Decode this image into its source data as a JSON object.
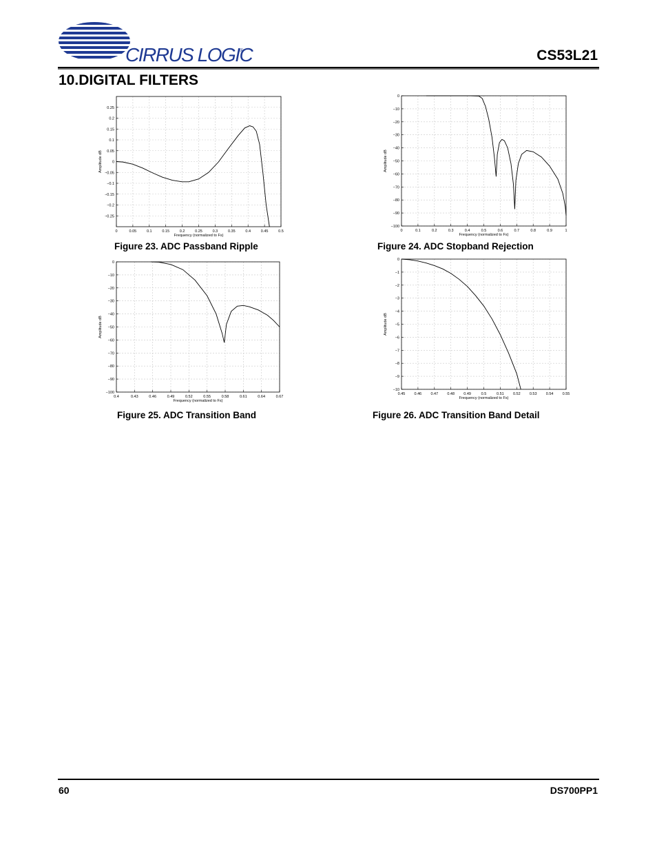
{
  "header": {
    "logo_text": "CIRRUS LOGIC",
    "logo_mark": "®",
    "doc_id": "CS53L21",
    "section_title": "10.DIGITAL FILTERS"
  },
  "colors": {
    "logo_blue": "#1f3a93",
    "curve": "#000000",
    "grid": "#c8c8c8"
  },
  "chart_data": [
    {
      "id": "fig23",
      "type": "line",
      "caption": "Figure 23.  ADC Passband Ripple",
      "xlabel": "Frequency (normalized to Fs)",
      "ylabel": "Amplitude dB",
      "xlim": [
        0,
        0.5
      ],
      "ylim": [
        -0.3,
        0.3
      ],
      "xticks": [
        0,
        0.05,
        0.1,
        0.15,
        0.2,
        0.25,
        0.3,
        0.35,
        0.4,
        0.45,
        0.5
      ],
      "xticklabels": [
        "0",
        "0.05",
        "0.1",
        "0.15",
        "0.2",
        "0.25",
        "0.3",
        "0.35",
        "0.4",
        "0.45",
        "0.5"
      ],
      "yticks": [
        -0.25,
        -0.2,
        -0.15,
        -0.1,
        -0.05,
        0,
        0.05,
        0.1,
        0.15,
        0.2,
        0.25
      ],
      "yticklabels": [
        "−0.25",
        "−0.2",
        "−0.15",
        "−0.1",
        "−0.05",
        "0",
        "0.05",
        "0.1",
        "0.15",
        "0.2",
        "0.25"
      ],
      "grid": true,
      "series": [
        {
          "values": [
            [
              0,
              0.0
            ],
            [
              0.02,
              -0.002
            ],
            [
              0.05,
              -0.012
            ],
            [
              0.08,
              -0.03
            ],
            [
              0.11,
              -0.052
            ],
            [
              0.14,
              -0.072
            ],
            [
              0.17,
              -0.086
            ],
            [
              0.2,
              -0.093
            ],
            [
              0.22,
              -0.093
            ],
            [
              0.25,
              -0.08
            ],
            [
              0.28,
              -0.05
            ],
            [
              0.31,
              -0.002
            ],
            [
              0.34,
              0.06
            ],
            [
              0.37,
              0.12
            ],
            [
              0.39,
              0.155
            ],
            [
              0.405,
              0.165
            ],
            [
              0.415,
              0.16
            ],
            [
              0.425,
              0.14
            ],
            [
              0.435,
              0.08
            ],
            [
              0.445,
              -0.05
            ],
            [
              0.455,
              -0.2
            ],
            [
              0.465,
              -0.3
            ]
          ]
        }
      ]
    },
    {
      "id": "fig24",
      "type": "line",
      "caption": "Figure 24.  ADC Stopband Rejection",
      "xlabel": "Frequency (normalized to Fs)",
      "ylabel": "Amplitude dB",
      "xlim": [
        0,
        1
      ],
      "ylim": [
        -100,
        0
      ],
      "xticks": [
        0,
        0.1,
        0.2,
        0.3,
        0.4,
        0.5,
        0.6,
        0.7,
        0.8,
        0.9,
        1
      ],
      "xticklabels": [
        "0",
        "0.1",
        "0.2",
        "0.3",
        "0.4",
        "0.5",
        "0.6",
        "0.7",
        "0.8",
        "0.9",
        "1"
      ],
      "yticks": [
        -100,
        -90,
        -80,
        -70,
        -60,
        -50,
        -40,
        -30,
        -20,
        -10,
        0
      ],
      "yticklabels": [
        "−100",
        "−90",
        "−80",
        "−70",
        "−60",
        "−50",
        "−40",
        "−30",
        "−20",
        "−10",
        "0"
      ],
      "grid": true,
      "series": [
        {
          "values": [
            [
              0.15,
              0
            ],
            [
              0.3,
              0
            ],
            [
              0.42,
              0
            ],
            [
              0.47,
              -0.2
            ],
            [
              0.49,
              -2
            ],
            [
              0.51,
              -8
            ],
            [
              0.53,
              -18
            ],
            [
              0.55,
              -32
            ],
            [
              0.565,
              -48
            ],
            [
              0.575,
              -62
            ],
            [
              0.582,
              -45
            ],
            [
              0.595,
              -36
            ],
            [
              0.61,
              -33.5
            ],
            [
              0.625,
              -34.5
            ],
            [
              0.645,
              -40
            ],
            [
              0.665,
              -52
            ],
            [
              0.68,
              -68
            ],
            [
              0.688,
              -87
            ],
            [
              0.695,
              -65
            ],
            [
              0.71,
              -52
            ],
            [
              0.73,
              -45
            ],
            [
              0.76,
              -42
            ],
            [
              0.8,
              -43
            ],
            [
              0.85,
              -47
            ],
            [
              0.9,
              -54
            ],
            [
              0.95,
              -64
            ],
            [
              0.98,
              -75
            ],
            [
              0.995,
              -85
            ],
            [
              1.0,
              -92
            ]
          ]
        }
      ]
    },
    {
      "id": "fig25",
      "type": "line",
      "caption": "Figure 25.  ADC Transition Band",
      "xlabel": "Frequency (normalized to Fs)",
      "ylabel": "Amplitude dB",
      "xlim": [
        0.4,
        0.67
      ],
      "ylim": [
        -100,
        0
      ],
      "xticks": [
        0.4,
        0.43,
        0.46,
        0.49,
        0.52,
        0.55,
        0.58,
        0.61,
        0.64,
        0.67
      ],
      "xticklabels": [
        "0.4",
        "0.43",
        "0.46",
        "0.49",
        "0.52",
        "0.55",
        "0.58",
        "0.61",
        "0.64",
        "0.67"
      ],
      "yticks": [
        -100,
        -90,
        -80,
        -70,
        -60,
        -50,
        -40,
        -30,
        -20,
        -10,
        0
      ],
      "yticklabels": [
        "−100",
        "−90",
        "−80",
        "−70",
        "−60",
        "−50",
        "−40",
        "−30",
        "−20",
        "−10",
        "0"
      ],
      "grid": true,
      "series": [
        {
          "values": [
            [
              0.457,
              0
            ],
            [
              0.47,
              -0.2
            ],
            [
              0.49,
              -2
            ],
            [
              0.51,
              -6
            ],
            [
              0.53,
              -14
            ],
            [
              0.55,
              -26
            ],
            [
              0.565,
              -40
            ],
            [
              0.575,
              -55
            ],
            [
              0.5785,
              -62
            ],
            [
              0.582,
              -48
            ],
            [
              0.59,
              -38
            ],
            [
              0.6,
              -34
            ],
            [
              0.61,
              -33.5
            ],
            [
              0.62,
              -34.5
            ],
            [
              0.635,
              -37
            ],
            [
              0.65,
              -41
            ],
            [
              0.66,
              -45
            ],
            [
              0.67,
              -50
            ]
          ]
        }
      ]
    },
    {
      "id": "fig26",
      "type": "line",
      "caption": "Figure 26.  ADC Transition Band Detail",
      "xlabel": "Frequency (normalized to Fs)",
      "ylabel": "Amplitude dB",
      "xlim": [
        0.45,
        0.55
      ],
      "ylim": [
        -10,
        0
      ],
      "xticks": [
        0.45,
        0.46,
        0.47,
        0.48,
        0.49,
        0.5,
        0.51,
        0.52,
        0.53,
        0.54,
        0.55
      ],
      "xticklabels": [
        "0.45",
        "0.46",
        "0.47",
        "0.48",
        "0.49",
        "0.5",
        "0.51",
        "0.52",
        "0.53",
        "0.54",
        "0.55"
      ],
      "yticks": [
        -10,
        -9,
        -8,
        -7,
        -6,
        -5,
        -4,
        -3,
        -2,
        -1,
        0
      ],
      "yticklabels": [
        "−10",
        "−9",
        "−8",
        "−7",
        "−6",
        "−5",
        "−4",
        "−3",
        "−2",
        "−1",
        "0"
      ],
      "grid": true,
      "series": [
        {
          "values": [
            [
              0.45,
              0
            ],
            [
              0.455,
              -0.05
            ],
            [
              0.46,
              -0.15
            ],
            [
              0.465,
              -0.3
            ],
            [
              0.47,
              -0.5
            ],
            [
              0.475,
              -0.75
            ],
            [
              0.48,
              -1.1
            ],
            [
              0.485,
              -1.55
            ],
            [
              0.49,
              -2.1
            ],
            [
              0.495,
              -2.8
            ],
            [
              0.5,
              -3.6
            ],
            [
              0.505,
              -4.6
            ],
            [
              0.51,
              -5.8
            ],
            [
              0.515,
              -7.2
            ],
            [
              0.52,
              -8.8
            ],
            [
              0.5225,
              -10
            ]
          ]
        }
      ]
    }
  ],
  "footer": {
    "page_number": "60",
    "doc_revision": "DS700PP1"
  }
}
